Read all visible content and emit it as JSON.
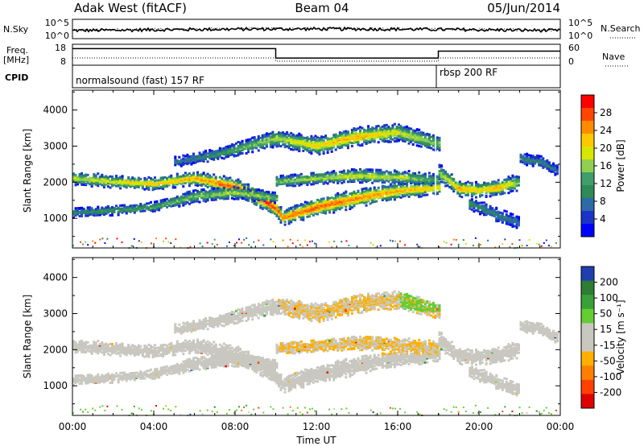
{
  "header": {
    "station": "Adak West (fitACF)",
    "beam": "Beam 04",
    "date": "05/Jun/2014"
  },
  "strip_labels": {
    "nsky": "N.Sky",
    "nsky_top": "10^5",
    "nsky_bottom": "10^0",
    "nsearch": "N.Search",
    "nsearch_top": "10^5",
    "nsearch_bottom": "10^0",
    "freq": "Freq.",
    "freq_unit": "[MHz]",
    "freq_top": "18",
    "freq_bottom": "8",
    "nave_top": "60",
    "nave_bottom": "0",
    "nave": "Nave",
    "cpid": "CPID"
  },
  "programs": [
    {
      "name": "normalsound (fast) 157 RF",
      "start_hour": 0
    },
    {
      "name": "rbsp 200 RF",
      "start_hour": 18
    }
  ],
  "power_colorbar": {
    "label": "Power [dB]",
    "ticks": [
      "28",
      "24",
      "20",
      "16",
      "12",
      "8",
      "4"
    ],
    "colors": [
      "#ff0000",
      "#ff4500",
      "#ff8c00",
      "#ffc800",
      "#d7e600",
      "#90d050",
      "#3f9e6c",
      "#2e8b57",
      "#2d6aa8",
      "#1a34c8",
      "#0000ff"
    ]
  },
  "velocity_colorbar": {
    "label": "Velocity [m s⁻¹]",
    "ticks": [
      "200",
      "100",
      "50",
      "15",
      "-15",
      "-50",
      "-100",
      "-200"
    ],
    "colors": [
      "#1f3fb0",
      "#2e7d32",
      "#3aa03a",
      "#66cc33",
      "#c8c8c0",
      "#c8c8c0",
      "#ffb000",
      "#ff8000",
      "#ff4000",
      "#e00000"
    ]
  },
  "axes": {
    "ylabel": "Slant Range [km]",
    "xlabel": "Time UT"
  },
  "chart_data": {
    "type": "heatmap",
    "x_ticks": [
      "00:00",
      "04:00",
      "08:00",
      "12:00",
      "16:00",
      "20:00",
      "00:00"
    ],
    "x_range_hours": [
      0,
      24
    ],
    "y_ticks": [
      "4000",
      "3000",
      "2000",
      "1000"
    ],
    "ylim": [
      180,
      4550
    ],
    "freq_mhz": [
      {
        "start_hour": 0,
        "end_hour": 10,
        "value": 16.2
      },
      {
        "start_hour": 10,
        "end_hour": 18,
        "value": 11.3
      },
      {
        "start_hour": 18,
        "end_hour": 24,
        "value": 14.9
      }
    ],
    "nave": [
      {
        "start_hour": 0,
        "end_hour": 10,
        "value": 20
      },
      {
        "start_hour": 10,
        "end_hour": 18,
        "value": 10
      },
      {
        "start_hour": 18,
        "end_hour": 24,
        "value": 20
      }
    ],
    "echo_bands": [
      {
        "name": "main",
        "points": [
          [
            0,
            2150,
            120,
            16
          ],
          [
            2,
            2050,
            110,
            18
          ],
          [
            4,
            2000,
            110,
            20
          ],
          [
            6,
            2150,
            120,
            22
          ],
          [
            8,
            1900,
            150,
            26
          ],
          [
            9.5,
            1500,
            160,
            28
          ],
          [
            10,
            1300,
            140,
            26
          ],
          [
            10.3,
            1050,
            130,
            24
          ],
          [
            12,
            1350,
            160,
            26
          ],
          [
            14,
            1600,
            160,
            24
          ],
          [
            16,
            1800,
            140,
            22
          ],
          [
            18,
            1900,
            130,
            20
          ]
        ]
      },
      {
        "name": "low",
        "points": [
          [
            0,
            1200,
            90,
            8
          ],
          [
            2,
            1250,
            80,
            10
          ],
          [
            4,
            1350,
            90,
            12
          ],
          [
            6,
            1650,
            110,
            14
          ],
          [
            8,
            1750,
            110,
            16
          ],
          [
            10,
            1600,
            90,
            14
          ]
        ]
      },
      {
        "name": "upper",
        "points": [
          [
            5,
            2600,
            90,
            6
          ],
          [
            7,
            2800,
            100,
            10
          ],
          [
            10,
            3250,
            140,
            16
          ],
          [
            12,
            3050,
            160,
            20
          ],
          [
            14,
            3300,
            160,
            22
          ],
          [
            16,
            3420,
            150,
            18
          ],
          [
            18,
            3100,
            130,
            14
          ]
        ]
      },
      {
        "name": "mid",
        "points": [
          [
            10,
            2050,
            100,
            14
          ],
          [
            12,
            2150,
            100,
            16
          ],
          [
            14,
            2220,
            120,
            18
          ],
          [
            16,
            2180,
            120,
            16
          ],
          [
            18,
            2100,
            100,
            12
          ]
        ]
      },
      {
        "name": "rbsp1",
        "points": [
          [
            18,
            2300,
            150,
            14
          ],
          [
            19,
            1850,
            140,
            22
          ],
          [
            20,
            1820,
            130,
            20
          ],
          [
            21,
            1900,
            140,
            22
          ],
          [
            22,
            2050,
            140,
            14
          ]
        ]
      },
      {
        "name": "rbsp2",
        "points": [
          [
            19.5,
            1450,
            110,
            10
          ],
          [
            21,
            1100,
            120,
            8
          ],
          [
            22,
            900,
            100,
            6
          ]
        ]
      },
      {
        "name": "rbsp3",
        "points": [
          [
            22,
            2700,
            100,
            8
          ],
          [
            23,
            2600,
            100,
            8
          ],
          [
            24,
            2300,
            90,
            6
          ]
        ]
      }
    ],
    "velocity_regions": [
      {
        "start_hour": 0,
        "end_hour": 24,
        "range_km": [
          200,
          3600
        ],
        "velocity": "-15..15"
      },
      {
        "start_hour": 10,
        "end_hour": 18,
        "range_km": [
          1900,
          3550
        ],
        "velocity": "-50..-15"
      },
      {
        "start_hour": 16,
        "end_hour": 18,
        "range_km": [
          3100,
          3550
        ],
        "velocity": "15..50"
      },
      {
        "start_hour": 0,
        "end_hour": 24,
        "range_km": [
          180,
          500
        ],
        "velocity": "50..100"
      }
    ]
  }
}
